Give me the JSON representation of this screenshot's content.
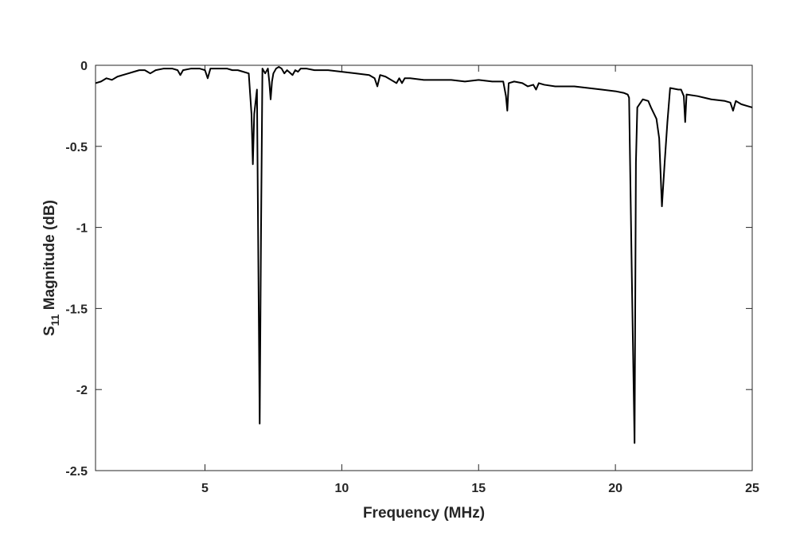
{
  "chart_data": {
    "type": "line",
    "xlabel": "Frequency (MHz)",
    "ylabel": {
      "main": "S",
      "subscript": "11",
      "rest": " Magnitude (dB)"
    },
    "xlim": [
      1,
      25
    ],
    "ylim": [
      -2.5,
      0
    ],
    "x_ticks": [
      5,
      10,
      15,
      20,
      25
    ],
    "y_ticks": [
      0,
      -0.5,
      -1,
      -1.5,
      -2,
      -2.5
    ],
    "x_tick_labels": [
      "5",
      "10",
      "15",
      "20",
      "25"
    ],
    "y_tick_labels": [
      "0",
      "-0.5",
      "-1",
      "-1.5",
      "-2",
      "-2.5"
    ],
    "grid": false,
    "box": true,
    "line_color": "#000000",
    "series": [
      {
        "x": [
          1.0,
          1.2,
          1.4,
          1.6,
          1.8,
          2.0,
          2.2,
          2.4,
          2.6,
          2.8,
          2.9,
          3.0,
          3.2,
          3.5,
          3.8,
          4.0,
          4.1,
          4.2,
          4.5,
          4.8,
          5.0,
          5.1,
          5.2,
          5.5,
          5.8,
          6.0,
          6.2,
          6.4,
          6.6,
          6.7,
          6.75,
          6.8,
          6.9,
          6.95,
          7.0,
          7.05,
          7.1,
          7.2,
          7.3,
          7.35,
          7.4,
          7.45,
          7.5,
          7.6,
          7.7,
          7.8,
          7.9,
          8.0,
          8.2,
          8.3,
          8.4,
          8.5,
          8.7,
          9.0,
          9.5,
          10.0,
          10.5,
          11.0,
          11.2,
          11.3,
          11.4,
          11.6,
          11.8,
          12.0,
          12.1,
          12.2,
          12.3,
          12.5,
          13.0,
          13.5,
          14.0,
          14.5,
          15.0,
          15.5,
          15.9,
          16.0,
          16.05,
          16.1,
          16.3,
          16.6,
          16.8,
          17.0,
          17.1,
          17.2,
          17.4,
          17.8,
          18.0,
          18.5,
          19.0,
          19.5,
          20.0,
          20.3,
          20.45,
          20.5,
          20.6,
          20.7,
          20.75,
          20.8,
          21.0,
          21.2,
          21.3,
          21.5,
          21.6,
          21.7,
          21.8,
          21.9,
          22.0,
          22.3,
          22.4,
          22.5,
          22.55,
          22.6,
          23.0,
          23.5,
          24.0,
          24.2,
          24.3,
          24.4,
          24.6,
          24.8,
          25.0
        ],
        "y": [
          -0.11,
          -0.1,
          -0.08,
          -0.09,
          -0.07,
          -0.06,
          -0.05,
          -0.04,
          -0.03,
          -0.03,
          -0.04,
          -0.05,
          -0.03,
          -0.02,
          -0.02,
          -0.03,
          -0.06,
          -0.03,
          -0.02,
          -0.02,
          -0.03,
          -0.08,
          -0.02,
          -0.02,
          -0.02,
          -0.03,
          -0.03,
          -0.04,
          -0.05,
          -0.3,
          -0.61,
          -0.3,
          -0.15,
          -1.2,
          -2.21,
          -1.0,
          -0.02,
          -0.05,
          -0.02,
          -0.1,
          -0.21,
          -0.1,
          -0.05,
          -0.02,
          -0.01,
          -0.02,
          -0.05,
          -0.03,
          -0.06,
          -0.03,
          -0.04,
          -0.02,
          -0.02,
          -0.03,
          -0.03,
          -0.04,
          -0.05,
          -0.06,
          -0.08,
          -0.13,
          -0.06,
          -0.07,
          -0.09,
          -0.11,
          -0.08,
          -0.11,
          -0.08,
          -0.08,
          -0.09,
          -0.09,
          -0.09,
          -0.1,
          -0.09,
          -0.1,
          -0.1,
          -0.19,
          -0.28,
          -0.11,
          -0.1,
          -0.11,
          -0.13,
          -0.12,
          -0.15,
          -0.11,
          -0.12,
          -0.13,
          -0.13,
          -0.13,
          -0.14,
          -0.15,
          -0.16,
          -0.17,
          -0.18,
          -0.2,
          -1.3,
          -2.33,
          -0.6,
          -0.26,
          -0.21,
          -0.22,
          -0.26,
          -0.33,
          -0.45,
          -0.87,
          -0.6,
          -0.35,
          -0.14,
          -0.15,
          -0.15,
          -0.19,
          -0.35,
          -0.18,
          -0.19,
          -0.21,
          -0.22,
          -0.23,
          -0.28,
          -0.22,
          -0.24,
          -0.25,
          -0.26
        ]
      }
    ]
  }
}
